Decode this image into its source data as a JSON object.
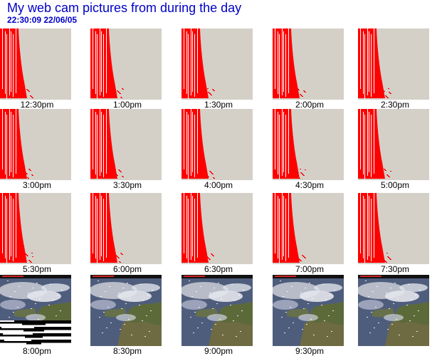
{
  "page": {
    "title": "My web cam pictures from during the day",
    "timestamp": "22:30:09  22/06/05"
  },
  "colors": {
    "title": "#0000c8",
    "overexposed_red": "#ff0000",
    "grey_background": "#d4d0c8"
  },
  "rows": [
    {
      "kind": "overexposed",
      "items": [
        {
          "caption": "12:30pm"
        },
        {
          "caption": "1:00pm"
        },
        {
          "caption": "1:30pm"
        },
        {
          "caption": "2:00pm"
        },
        {
          "caption": "2:30pm"
        }
      ]
    },
    {
      "kind": "overexposed",
      "items": [
        {
          "caption": "3:00pm"
        },
        {
          "caption": "3:30pm"
        },
        {
          "caption": "4:00pm"
        },
        {
          "caption": "4:30pm"
        },
        {
          "caption": "5:00pm"
        }
      ]
    },
    {
      "kind": "overexposed",
      "items": [
        {
          "caption": "5:30pm"
        },
        {
          "caption": "6:00pm"
        },
        {
          "caption": "6:30pm"
        },
        {
          "caption": "7:00pm"
        },
        {
          "caption": "7:30pm"
        }
      ]
    },
    {
      "kind": "satellite",
      "items": [
        {
          "caption": "8:00pm",
          "corrupted": true
        },
        {
          "caption": "8:30pm"
        },
        {
          "caption": "9:00pm"
        },
        {
          "caption": "9:30pm"
        },
        {
          "caption": ""
        }
      ]
    }
  ]
}
